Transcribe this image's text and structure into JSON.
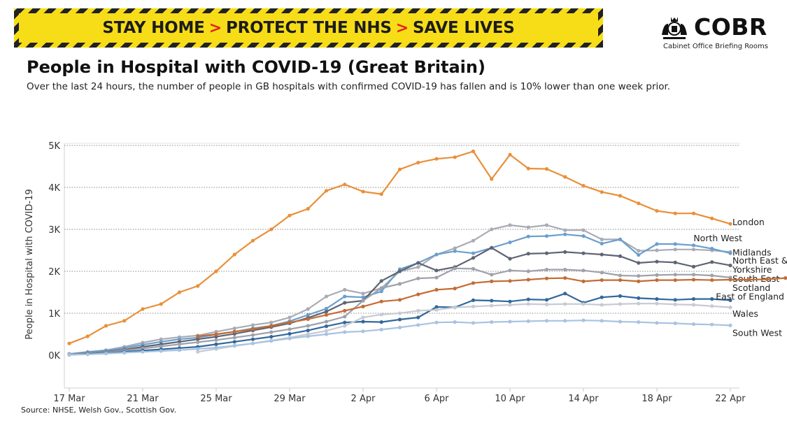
{
  "banner": {
    "part1": "STAY HOME",
    "part2": "PROTECT THE NHS",
    "part3": "SAVE LIVES",
    "separator": ">"
  },
  "logo": {
    "word": "COBR",
    "subtitle": "Cabinet Office Briefing Rooms",
    "icon": "royal-crest-icon"
  },
  "header": {
    "title": "People in Hospital with COVID-19 (Great Britain)",
    "subtitle": "Over the last 24 hours, the number of people in GB hospitals with confirmed COVID-19 has fallen and is 10% lower than one week prior."
  },
  "footer": {
    "source": "Source: NHSE, Welsh Gov., Scottish Gov."
  },
  "chart_data": {
    "type": "line",
    "title": "People in Hospital with COVID-19 (Great Britain)",
    "ylabel": "People in Hospital with COVID-19",
    "xlabel": "",
    "ylim": [
      -400,
      5200
    ],
    "yticks": [
      0,
      1000,
      2000,
      3000,
      4000,
      5000
    ],
    "ytick_labels": [
      "0K",
      "1K",
      "2K",
      "3K",
      "4K",
      "5K"
    ],
    "gridlines": "horizontal dotted",
    "xticks": [
      {
        "day": 0,
        "label": "17 Mar"
      },
      {
        "day": 4,
        "label": "21 Mar"
      },
      {
        "day": 8,
        "label": "25 Mar"
      },
      {
        "day": 12,
        "label": "29 Mar"
      },
      {
        "day": 16,
        "label": "2 Apr"
      },
      {
        "day": 20,
        "label": "6 Apr"
      },
      {
        "day": 24,
        "label": "10 Apr"
      },
      {
        "day": 28,
        "label": "14 Apr"
      },
      {
        "day": 32,
        "label": "18 Apr"
      },
      {
        "day": 36,
        "label": "22 Apr"
      }
    ],
    "series": [
      {
        "name": "London",
        "color": "#e8903a",
        "start": 0,
        "label_lines": [
          "London"
        ],
        "label_y": 3180,
        "values": [
          280,
          450,
          700,
          820,
          1100,
          1220,
          1500,
          1650,
          2000,
          2400,
          2730,
          3000,
          3330,
          3490,
          3920,
          4070,
          3900,
          3840,
          4430,
          4590,
          4680,
          4720,
          4860,
          4200,
          4780,
          4450,
          4440,
          4250,
          4040,
          3890,
          3800,
          3620,
          3440,
          3380,
          3380,
          3260,
          3130
        ]
      },
      {
        "name": "North West",
        "color": "#a9abb5",
        "start": 0,
        "label_lines": [
          "North West"
        ],
        "label_y": 2800,
        "values": [
          30,
          80,
          120,
          200,
          300,
          380,
          430,
          470,
          560,
          640,
          720,
          780,
          900,
          1100,
          1400,
          1560,
          1470,
          1600,
          2000,
          2100,
          2400,
          2550,
          2730,
          3000,
          3100,
          3050,
          3100,
          2980,
          2980,
          2760,
          2760,
          2490,
          2500,
          2520,
          2520,
          2500,
          2460
        ]
      },
      {
        "name": "Midlands",
        "color": "#6b9fcc",
        "start": 0,
        "label_lines": [
          "Midlands"
        ],
        "label_y": 2460,
        "values": [
          30,
          70,
          110,
          170,
          250,
          320,
          380,
          420,
          490,
          560,
          640,
          700,
          810,
          960,
          1110,
          1400,
          1380,
          1520,
          2050,
          2200,
          2400,
          2480,
          2430,
          2560,
          2690,
          2830,
          2840,
          2880,
          2840,
          2660,
          2760,
          2390,
          2650,
          2650,
          2620,
          2540,
          2430
        ]
      },
      {
        "name": "North East & Yorkshire",
        "color": "#5e6474",
        "start": 0,
        "label_lines": [
          "North East &",
          "Yorkshire"
        ],
        "label_y": 2270,
        "values": [
          20,
          50,
          80,
          130,
          200,
          260,
          320,
          380,
          440,
          510,
          590,
          670,
          760,
          890,
          1040,
          1250,
          1300,
          1770,
          2000,
          2200,
          2020,
          2100,
          2320,
          2560,
          2300,
          2420,
          2430,
          2460,
          2430,
          2400,
          2360,
          2200,
          2230,
          2210,
          2110,
          2220,
          2140
        ]
      },
      {
        "name": "South East",
        "color": "#9fa1ab",
        "start": 0,
        "label_lines": [
          "South East"
        ],
        "label_y": 1830,
        "values": [
          20,
          45,
          70,
          110,
          160,
          210,
          260,
          310,
          360,
          420,
          480,
          550,
          620,
          700,
          800,
          920,
          1300,
          1600,
          1700,
          1830,
          1850,
          2070,
          2060,
          1920,
          2020,
          2000,
          2040,
          2040,
          2020,
          1970,
          1900,
          1890,
          1910,
          1920,
          1920,
          1900,
          1850
        ]
      },
      {
        "name": "Scotland",
        "color": "#c36c35",
        "start": 7,
        "label_lines": [
          "Scotland"
        ],
        "label_y": 1620,
        "values": [
          450,
          500,
          560,
          620,
          700,
          780,
          860,
          960,
          1060,
          1160,
          1280,
          1320,
          1450,
          1560,
          1590,
          1720,
          1760,
          1770,
          1800,
          1830,
          1840,
          1760,
          1790,
          1790,
          1760,
          1790,
          1790,
          1800,
          1790,
          1800,
          1800,
          1810,
          1840,
          1740
        ]
      },
      {
        "name": "East of England",
        "color": "#32689b",
        "start": 0,
        "label_lines": [
          "East of England"
        ],
        "label_y": 1410,
        "values": [
          10,
          30,
          50,
          80,
          110,
          140,
          170,
          200,
          260,
          320,
          380,
          440,
          510,
          590,
          690,
          780,
          800,
          790,
          850,
          900,
          1150,
          1140,
          1310,
          1300,
          1280,
          1330,
          1320,
          1470,
          1250,
          1380,
          1410,
          1360,
          1340,
          1320,
          1340,
          1340,
          1310
        ]
      },
      {
        "name": "Wales",
        "color": "#c7cad3",
        "start": 7,
        "label_lines": [
          "Wales"
        ],
        "label_y": 1000,
        "values": [
          80,
          150,
          220,
          280,
          350,
          420,
          500,
          580,
          700,
          900,
          970,
          1000,
          1060,
          1080,
          1140,
          1160,
          1180,
          1200,
          1220,
          1210,
          1220,
          1220,
          1200,
          1220,
          1230,
          1230,
          1210,
          1200,
          1170,
          1140
        ]
      },
      {
        "name": "South West",
        "color": "#a8c3e0",
        "start": 0,
        "label_lines": [
          "South West"
        ],
        "label_y": 540,
        "values": [
          10,
          20,
          40,
          60,
          80,
          100,
          120,
          150,
          180,
          230,
          280,
          340,
          400,
          450,
          500,
          550,
          570,
          610,
          660,
          720,
          780,
          790,
          770,
          790,
          800,
          810,
          820,
          820,
          830,
          820,
          800,
          790,
          770,
          760,
          740,
          730,
          710
        ]
      }
    ]
  }
}
